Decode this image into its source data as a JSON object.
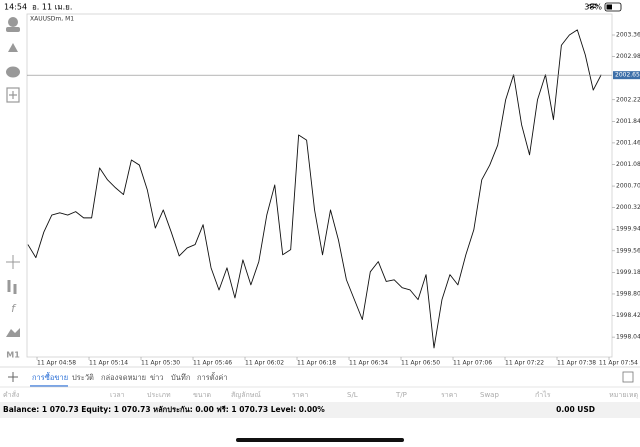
{
  "status_bar": {
    "time": "14:54",
    "date": "อ. 11 เม.ย.",
    "battery": "38%"
  },
  "timeframe": "M1",
  "tabs": [
    "การซื้อขาย",
    "ประวัติ",
    "กล่องจดหมาย",
    "ข่าว",
    "บันทึก",
    "การตั้งค่า"
  ],
  "table": {
    "headers": [
      "คำสั่ง",
      "เวลา",
      "ประเภท",
      "ขนาด",
      "สัญลักษณ์",
      "ราคา",
      "S/L",
      "T/P",
      "ราคา",
      "Swap",
      "กำไร",
      "หมายเหตุ"
    ]
  },
  "balance": {
    "text": "Balance: 1 070.73 Equity: 1 070.73 หลักประกัน: 0.00 ฟรี: 1 070.73 Level: 0.00%",
    "total": "0.00 USD"
  },
  "chart_data": {
    "type": "line",
    "title": "XAUUSDm, M1",
    "color": "#111111",
    "grid": false,
    "x": [
      -2.8,
      -0.35,
      2.1,
      4.55,
      7,
      9.45,
      11.9,
      14.35,
      16.8,
      19.25,
      21.7,
      24.15,
      26.6,
      29.05,
      31.5,
      33.95,
      36.4,
      38.85,
      41.3,
      43.75,
      46.2,
      48.65,
      51.1,
      53.55,
      56,
      58.45,
      60.9,
      63.35,
      65.8,
      68.25,
      70.7,
      73.15,
      75.6,
      78.05,
      80.5,
      82.95,
      85.4,
      87.85,
      90.3,
      92.75,
      95.2,
      97.65,
      100.1,
      102.55,
      105,
      107.45,
      109.9,
      112.35,
      114.8,
      117.25,
      119.7,
      122.15,
      124.6,
      127.05,
      129.5,
      131.95,
      134.4,
      136.85,
      139.3,
      141.75,
      144.2,
      146.65,
      149.1,
      151.55,
      154,
      156.45,
      158.9,
      161.35,
      163.8,
      166.25,
      168.7,
      171.15,
      173.6
    ],
    "values": [
      1999.67,
      1999.44,
      1999.89,
      2000.19,
      2000.23,
      2000.19,
      2000.25,
      2000.14,
      2000.14,
      2001.02,
      2000.81,
      2000.67,
      2000.55,
      2001.16,
      2001.07,
      2000.63,
      1999.96,
      2000.28,
      1999.89,
      1999.47,
      1999.61,
      1999.67,
      2000.02,
      1999.26,
      1998.87,
      1999.26,
      1998.73,
      1999.4,
      1998.96,
      1999.37,
      2000.19,
      2000.72,
      1999.49,
      1999.58,
      2001.6,
      2001.51,
      2000.28,
      1999.49,
      2000.28,
      1999.75,
      1999.05,
      1998.7,
      1998.35,
      1999.19,
      1999.37,
      1999.02,
      1999.05,
      1998.91,
      1998.87,
      1998.7,
      1999.14,
      1997.85,
      1998.7,
      1999.14,
      1998.96,
      1999.49,
      1999.93,
      2000.81,
      2001.07,
      2001.42,
      2002.22,
      2002.66,
      2001.78,
      2001.25,
      2002.22,
      2002.66,
      2001.87,
      2003.18,
      2003.36,
      2003.45,
      2003.01,
      2002.39,
      2002.66
    ],
    "xlim": [
      -3.08,
      176.92
    ],
    "xticks": [
      {
        "value": 0,
        "label": "11 Apr 04:58"
      },
      {
        "value": 16,
        "label": "11 Apr 05:14"
      },
      {
        "value": 32,
        "label": "11 Apr 05:30"
      },
      {
        "value": 48,
        "label": "11 Apr 05:46"
      },
      {
        "value": 64,
        "label": "11 Apr 06:02"
      },
      {
        "value": 80,
        "label": "11 Apr 06:18"
      },
      {
        "value": 96,
        "label": "11 Apr 06:34"
      },
      {
        "value": 112,
        "label": "11 Apr 06:50"
      },
      {
        "value": 128,
        "label": "11 Apr 07:06"
      },
      {
        "value": 144,
        "label": "11 Apr 07:22"
      },
      {
        "value": 160,
        "label": "11 Apr 07:38"
      },
      {
        "value": 176,
        "label": "11 Apr 07:54"
      }
    ],
    "ylim": [
      1997.69,
      2003.73
    ],
    "yticks": [
      {
        "value": 2003.36,
        "label": "2003.360"
      },
      {
        "value": 2002.98,
        "label": "2002.980"
      },
      {
        "value": 2002.22,
        "label": "2002.220"
      },
      {
        "value": 2001.84,
        "label": "2001.840"
      },
      {
        "value": 2001.46,
        "label": "2001.460"
      },
      {
        "value": 2001.08,
        "label": "2001.080"
      },
      {
        "value": 2000.7,
        "label": "2000.700"
      },
      {
        "value": 2000.32,
        "label": "2000.320"
      },
      {
        "value": 1999.94,
        "label": "1999.940"
      },
      {
        "value": 1999.56,
        "label": "1999.560"
      },
      {
        "value": 1999.18,
        "label": "1999.180"
      },
      {
        "value": 1998.8,
        "label": "1998.800"
      },
      {
        "value": 1998.42,
        "label": "1998.420"
      },
      {
        "value": 1998.04,
        "label": "1998.040"
      }
    ],
    "current_price": {
      "value": 2002.653,
      "label": "2002.653",
      "color": "#3d6fa8"
    }
  }
}
